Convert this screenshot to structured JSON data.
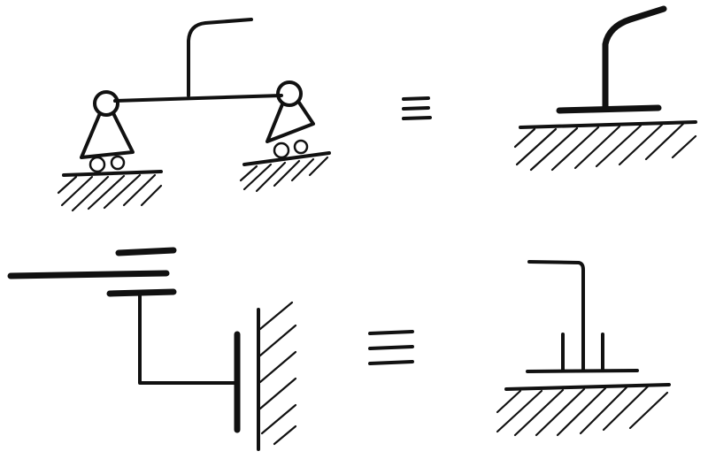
{
  "diagram": {
    "rows": [
      {
        "left": "two-pinned-roller-supports-beam-with-post",
        "relation": "equivalence",
        "right": "fixed-clamp-post-on-ground"
      },
      {
        "left": "slotted-guide-sliding-in-wall",
        "relation": "equivalence",
        "right": "sliding-sleeve-post-on-ground"
      }
    ],
    "ink_color": "#111111",
    "background_color": "#ffffff"
  }
}
